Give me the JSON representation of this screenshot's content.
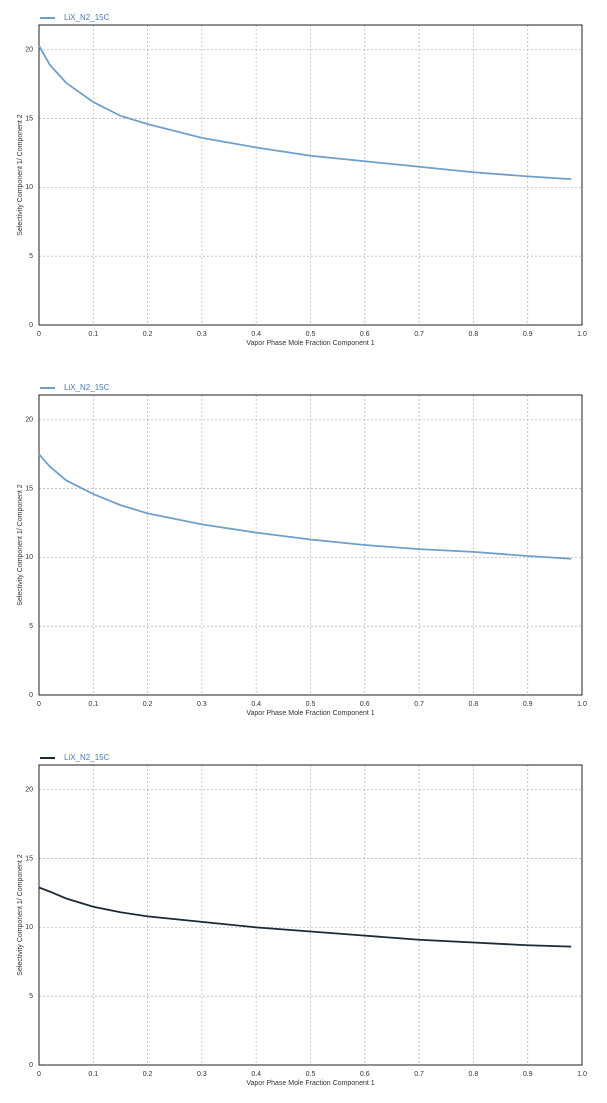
{
  "chart_data": [
    {
      "type": "line",
      "xlabel": "Vapor Phase Mole Fraction Component 1",
      "ylabel": "Selectivity Component 1/ Component 2",
      "x": [
        0,
        0.02,
        0.05,
        0.1,
        0.15,
        0.2,
        0.3,
        0.4,
        0.5,
        0.6,
        0.7,
        0.8,
        0.9,
        0.98
      ],
      "series": [
        {
          "name": "LiX_N2_15C",
          "color": "#6fa0cc",
          "values": [
            20.3,
            18.9,
            17.6,
            16.2,
            15.2,
            14.6,
            13.6,
            12.9,
            12.3,
            11.9,
            11.5,
            11.1,
            10.8,
            10.6
          ]
        }
      ],
      "xlim": [
        0,
        1
      ],
      "ylim": [
        0,
        21.8
      ],
      "xticks": [
        0,
        0.1,
        0.2,
        0.3,
        0.4,
        0.5,
        0.6,
        0.7,
        0.8,
        0.9,
        {
          "value": 1,
          "label": "1.0"
        }
      ],
      "yticks": [
        0,
        5,
        10,
        15,
        20
      ],
      "grid": true
    },
    {
      "type": "line",
      "xlabel": "Vapor Phase Mole Fraction Component 1",
      "ylabel": "Selectivity Component 1/ Component 2",
      "x": [
        0,
        0.02,
        0.05,
        0.1,
        0.15,
        0.2,
        0.3,
        0.4,
        0.5,
        0.6,
        0.7,
        0.8,
        0.9,
        0.98
      ],
      "series": [
        {
          "name": "LiX_N2_15C",
          "color": "#6fa0cc",
          "values": [
            17.5,
            16.6,
            15.6,
            14.6,
            13.8,
            13.2,
            12.4,
            11.8,
            11.3,
            10.9,
            10.6,
            10.4,
            10.1,
            9.9
          ]
        }
      ],
      "xlim": [
        0,
        1
      ],
      "ylim": [
        0,
        21.8
      ],
      "xticks": [
        0,
        0.1,
        0.2,
        0.3,
        0.4,
        0.5,
        0.6,
        0.7,
        0.8,
        0.9,
        {
          "value": 1,
          "label": "1.0"
        }
      ],
      "yticks": [
        0,
        5,
        10,
        15,
        20
      ],
      "grid": true
    },
    {
      "type": "line",
      "xlabel": "Vapor Phase Mole Fraction Component 1",
      "ylabel": "Selectivity Component 1/ Component 2",
      "x": [
        0,
        0.02,
        0.05,
        0.1,
        0.15,
        0.2,
        0.3,
        0.4,
        0.5,
        0.6,
        0.7,
        0.8,
        0.9,
        0.98
      ],
      "series": [
        {
          "name": "LiX_N2_15C",
          "color": "#1c2a38",
          "values": [
            12.9,
            12.6,
            12.1,
            11.5,
            11.1,
            10.8,
            10.4,
            10.0,
            9.7,
            9.4,
            9.1,
            8.9,
            8.7,
            8.6
          ]
        }
      ],
      "xlim": [
        0,
        1
      ],
      "ylim": [
        0,
        21.8
      ],
      "xticks": [
        0,
        0.1,
        0.2,
        0.3,
        0.4,
        0.5,
        0.6,
        0.7,
        0.8,
        0.9,
        {
          "value": 1,
          "label": "1.0"
        }
      ],
      "yticks": [
        0,
        5,
        10,
        15,
        20
      ],
      "grid": true
    }
  ]
}
